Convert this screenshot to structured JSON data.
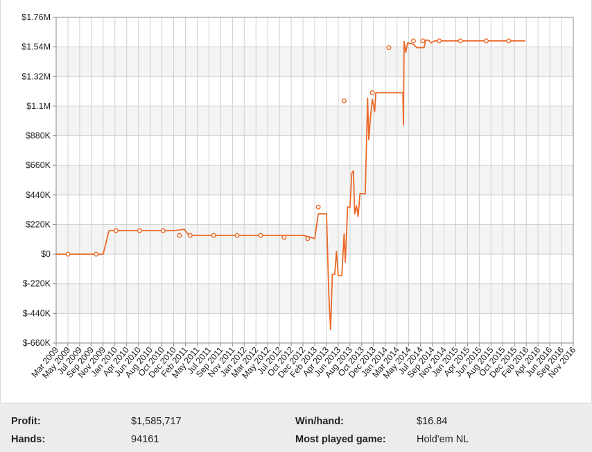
{
  "chart_data": {
    "type": "line",
    "ylim": [
      -660000,
      1760000
    ],
    "y_ticks": [
      "$1.76M",
      "$1.54M",
      "$1.32M",
      "$1.1M",
      "$880K",
      "$660K",
      "$440K",
      "$220K",
      "$0",
      "$-220K",
      "$-440K",
      "$-660K"
    ],
    "y_tick_values": [
      1760000,
      1540000,
      1320000,
      1100000,
      880000,
      660000,
      440000,
      220000,
      0,
      -220000,
      -440000,
      -660000
    ],
    "x_ticks": [
      "Mar 2009",
      "May 2009",
      "Jul 2009",
      "Sep 2009",
      "Nov 2009",
      "Jan 2010",
      "Apr 2010",
      "Jun 2010",
      "Aug 2010",
      "Oct 2010",
      "Dec 2010",
      "Feb 2011",
      "May 2011",
      "Jul 2011",
      "Sep 2011",
      "Nov 2011",
      "Jan 2012",
      "Mar 2012",
      "May 2012",
      "Jul 2012",
      "Oct 2012",
      "Dec 2012",
      "Feb 2013",
      "Apr 2013",
      "Jun 2013",
      "Aug 2013",
      "Oct 2013",
      "Dec 2013",
      "Jan 2014",
      "Mar 2014",
      "May 2014",
      "Jul 2014",
      "Sep 2014",
      "Nov 2014",
      "Jan 2015",
      "Apr 2015",
      "Jun 2015",
      "Aug 2015",
      "Oct 2015",
      "Dec 2015",
      "Feb 2016",
      "Apr 2016",
      "Jun 2016",
      "Sep 2016",
      "Nov 2016"
    ],
    "grid": true,
    "line_color": "#ea6a2a",
    "series": [
      {
        "points": [
          [
            0,
            0
          ],
          [
            1,
            0
          ],
          [
            2,
            0
          ],
          [
            3,
            0
          ],
          [
            4,
            0
          ],
          [
            4.5,
            175000
          ],
          [
            5,
            175000
          ],
          [
            6,
            175000
          ],
          [
            7,
            175000
          ],
          [
            8,
            175000
          ],
          [
            9,
            175000
          ],
          [
            10,
            175000
          ],
          [
            10.9,
            185000
          ],
          [
            11.3,
            140000
          ],
          [
            12,
            140000
          ],
          [
            13,
            140000
          ],
          [
            14,
            140000
          ],
          [
            15,
            140000
          ],
          [
            16,
            140000
          ],
          [
            17,
            140000
          ],
          [
            18,
            140000
          ],
          [
            19,
            140000
          ],
          [
            20,
            140000
          ],
          [
            21,
            140000
          ],
          [
            21.7,
            125000
          ],
          [
            22,
            115000
          ],
          [
            22.3,
            300000
          ],
          [
            23,
            300000
          ],
          [
            23.2,
            -300000
          ],
          [
            23.35,
            -560000
          ],
          [
            23.5,
            -150000
          ],
          [
            23.7,
            -150000
          ],
          [
            23.85,
            20000
          ],
          [
            24,
            -160000
          ],
          [
            24.3,
            -160000
          ],
          [
            24.5,
            150000
          ],
          [
            24.6,
            -60000
          ],
          [
            24.8,
            350000
          ],
          [
            25,
            350000
          ],
          [
            25.15,
            600000
          ],
          [
            25.3,
            620000
          ],
          [
            25.4,
            300000
          ],
          [
            25.55,
            360000
          ],
          [
            25.7,
            280000
          ],
          [
            25.85,
            450000
          ],
          [
            26.3,
            450000
          ],
          [
            26.5,
            1160000
          ],
          [
            26.6,
            850000
          ],
          [
            26.75,
            1020000
          ],
          [
            26.9,
            1150000
          ],
          [
            27.1,
            1060000
          ],
          [
            27.2,
            1200000
          ],
          [
            28.5,
            1200000
          ],
          [
            29.5,
            1200000
          ],
          [
            29.55,
            960000
          ],
          [
            29.6,
            1580000
          ],
          [
            29.75,
            1500000
          ],
          [
            29.9,
            1570000
          ],
          [
            30.4,
            1560000
          ],
          [
            30.7,
            1535000
          ],
          [
            31.3,
            1535000
          ],
          [
            31.45,
            1590000
          ],
          [
            31.7,
            1590000
          ],
          [
            31.9,
            1570000
          ],
          [
            32.2,
            1585000
          ],
          [
            33,
            1585000
          ],
          [
            34,
            1585000
          ],
          [
            35,
            1585000
          ],
          [
            36,
            1585000
          ],
          [
            37,
            1585000
          ],
          [
            38,
            1585000
          ],
          [
            39,
            1585000
          ],
          [
            39.9,
            1585000
          ]
        ],
        "markers": [
          [
            1,
            0
          ],
          [
            2,
            0
          ],
          [
            5,
            175000
          ],
          [
            6,
            175000
          ],
          [
            7,
            175000
          ],
          [
            8,
            140000
          ],
          [
            9,
            140000
          ],
          [
            10,
            140000
          ],
          [
            11,
            140000
          ],
          [
            12,
            140000
          ],
          [
            13,
            125000
          ],
          [
            14,
            115000
          ],
          [
            15,
            350000
          ],
          [
            16,
            1140000
          ],
          [
            17,
            1200000
          ],
          [
            18,
            1535000
          ],
          [
            19,
            1585000
          ],
          [
            20,
            1585000
          ],
          [
            21,
            1585000
          ],
          [
            22,
            1585000
          ],
          [
            23,
            1585000
          ],
          [
            24,
            1585000
          ]
        ]
      }
    ]
  },
  "stats": {
    "profit_label": "Profit:",
    "profit_value": "$1,585,717",
    "hands_label": "Hands:",
    "hands_value": "94161",
    "winhand_label": "Win/hand:",
    "winhand_value": "$16.84",
    "game_label": "Most played game:",
    "game_value": "Hold'em NL"
  }
}
